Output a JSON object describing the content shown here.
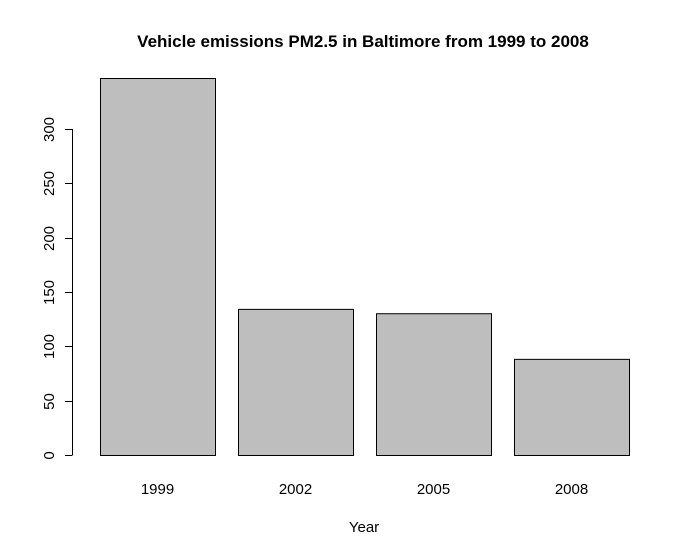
{
  "chart_data": {
    "type": "bar",
    "title": "Vehicle emissions PM2.5 in Baltimore from 1999 to 2008",
    "xlabel": "Year",
    "ylabel": "",
    "categories": [
      "1999",
      "2002",
      "2005",
      "2008"
    ],
    "values": [
      347,
      134.5,
      130.5,
      88.5
    ],
    "ylim": [
      0,
      347
    ],
    "yticks": [
      0,
      50,
      100,
      150,
      200,
      250,
      300
    ],
    "ytick_labels": [
      "0",
      "50",
      "100",
      "150",
      "200",
      "250",
      "300"
    ],
    "bar_fill": "#bebebe",
    "bar_stroke": "#000000",
    "grid": false,
    "legend": "none"
  }
}
